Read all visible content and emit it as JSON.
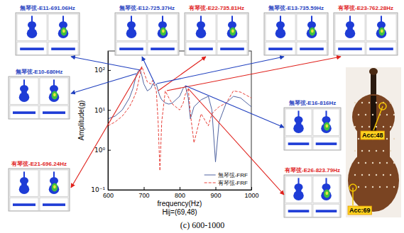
{
  "chart_data": {
    "type": "line",
    "x_label": "frequency(Hz)",
    "y_label": "Amplitude(g)",
    "x": [
      600,
      620,
      640,
      660,
      670,
      680,
      685,
      690,
      695,
      700,
      710,
      720,
      725,
      730,
      735,
      740,
      745,
      750,
      760,
      770,
      780,
      800,
      810,
      816,
      824,
      830,
      840,
      860,
      880,
      890,
      900,
      910,
      930,
      950,
      970,
      1000
    ],
    "series": [
      {
        "name": "無琴弦-FRF",
        "color": "#4f63a0",
        "line_style": "solid",
        "values": [
          6,
          7,
          10,
          20,
          35,
          80,
          95,
          100,
          70,
          45,
          30,
          35,
          45,
          40,
          45,
          30,
          22,
          18,
          15,
          14,
          15,
          22,
          35,
          40,
          20,
          6,
          12,
          18,
          22,
          10,
          0.5,
          5,
          15,
          22,
          20,
          12
        ]
      },
      {
        "name": "有琴弦-FRF",
        "color": "#e8413a",
        "line_style": "dashed",
        "values": [
          4,
          5,
          7,
          12,
          18,
          30,
          50,
          80,
          120,
          90,
          50,
          45,
          55,
          40,
          30,
          5,
          0.3,
          5,
          30,
          20,
          14,
          10,
          15,
          25,
          35,
          8,
          1.5,
          8,
          4,
          8,
          10,
          12,
          15,
          30,
          28,
          20
        ]
      }
    ],
    "xlim": [
      600,
      1000
    ],
    "xticks": [
      600,
      700,
      800,
      900,
      1000
    ],
    "ylim": [
      0.1,
      300
    ],
    "yticks": [
      {
        "value": 0.1,
        "label": "10⁻¹"
      },
      {
        "value": 1,
        "label": "10⁰"
      },
      {
        "value": 10,
        "label": "10¹"
      },
      {
        "value": 100,
        "label": "10²"
      }
    ],
    "log": "y",
    "grid": false,
    "legend": "lower right",
    "annotations": [
      {
        "text": "Hij=(69,48)",
        "color": "#000000"
      },
      {
        "text": "無琴弦-E11-691.06Hz",
        "color": "#1f3fbf"
      },
      {
        "text": "無琴弦-E12-725.37Hz",
        "color": "#1f3fbf"
      },
      {
        "text": "有琴弦-E22-735.81Hz",
        "color": "#e0201b"
      },
      {
        "text": "無琴弦-E13-735.59Hz",
        "color": "#1f3fbf"
      },
      {
        "text": "有琴弦-E23-762.28Hz",
        "color": "#e0201b"
      },
      {
        "text": "無琴弦-E10-680Hz",
        "color": "#1f3fbf"
      },
      {
        "text": "有琴弦-E21-696.24Hz",
        "color": "#e0201b"
      },
      {
        "text": "無琴弦-E16-816Hz",
        "color": "#1f3fbf"
      },
      {
        "text": "有琴弦-E26-823.79Hz",
        "color": "#e0201b"
      }
    ]
  },
  "caption": "(c) 600-1000",
  "photo": {
    "labels": [
      "Acc:48",
      "Acc:69"
    ]
  }
}
